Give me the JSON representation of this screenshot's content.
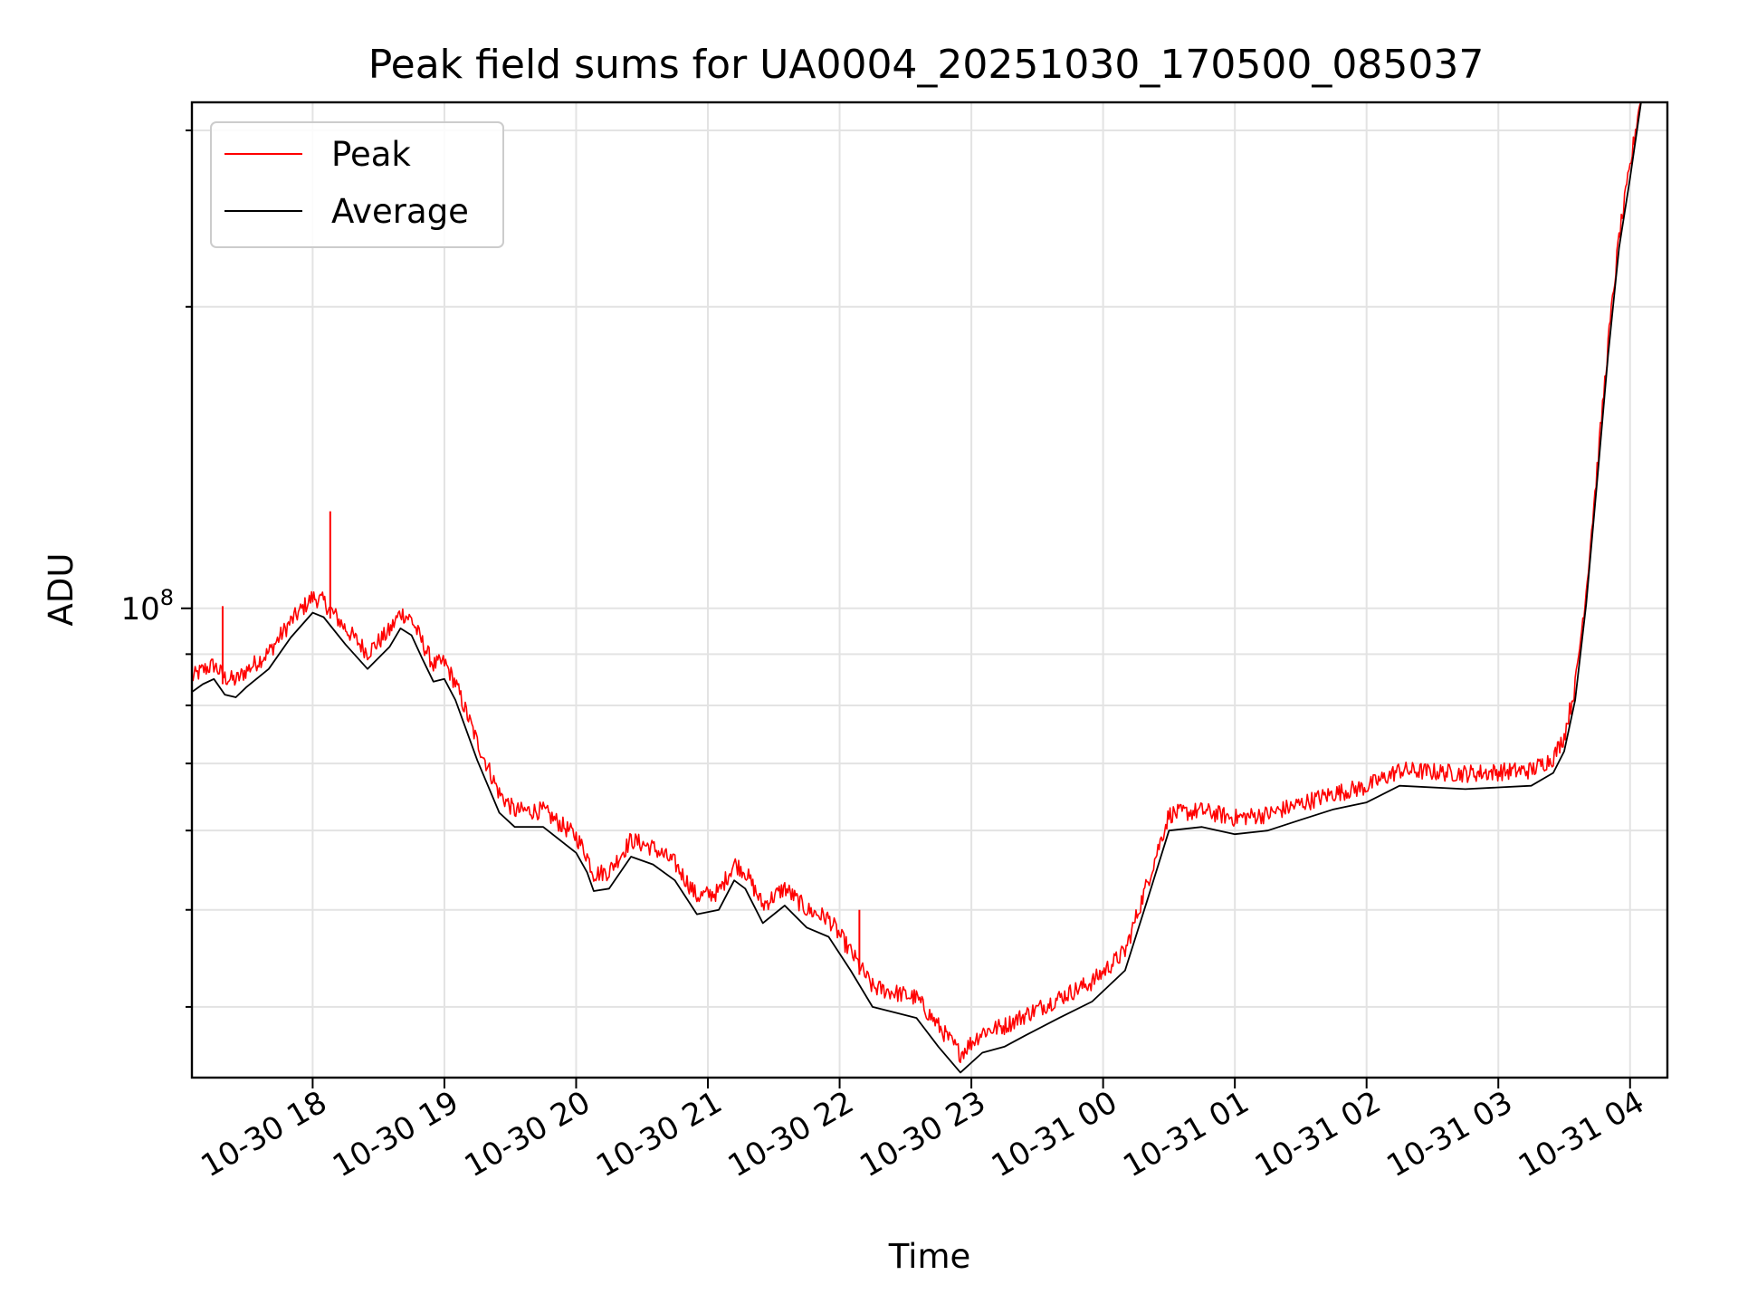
{
  "chart_data": {
    "type": "line",
    "title": "Peak field sums for UA0004_20251030_170500_085037",
    "xlabel": "Time",
    "ylabel": "ADU",
    "yscale": "log",
    "grid": true,
    "legend_position": "top-left",
    "xlim": [
      "2025-10-30 17:05",
      "2025-10-31 04:17"
    ],
    "ylim": [
      34000000,
      320000000
    ],
    "x_ticks": [
      {
        "label": "10-30 18",
        "value": "2025-10-30 18:00"
      },
      {
        "label": "10-30 19",
        "value": "2025-10-30 19:00"
      },
      {
        "label": "10-30 20",
        "value": "2025-10-30 20:00"
      },
      {
        "label": "10-30 21",
        "value": "2025-10-30 21:00"
      },
      {
        "label": "10-30 22",
        "value": "2025-10-30 22:00"
      },
      {
        "label": "10-30 23",
        "value": "2025-10-30 23:00"
      },
      {
        "label": "10-31 00",
        "value": "2025-10-31 00:00"
      },
      {
        "label": "10-31 01",
        "value": "2025-10-31 01:00"
      },
      {
        "label": "10-31 02",
        "value": "2025-10-31 02:00"
      },
      {
        "label": "10-31 03",
        "value": "2025-10-31 03:00"
      },
      {
        "label": "10-31 04",
        "value": "2025-10-31 04:00"
      }
    ],
    "y_major_ticks": [
      {
        "label_base": "10",
        "label_exp": "8",
        "value": 100000000
      }
    ],
    "y_minor_ticks": [
      40000000,
      50000000,
      60000000,
      70000000,
      80000000,
      90000000,
      200000000,
      300000000
    ],
    "series": [
      {
        "name": "Peak",
        "color": "#ff0000",
        "noise": 0.018,
        "spikes": [
          {
            "x": "2025-10-30 17:19",
            "y": 100500000
          },
          {
            "x": "2025-10-30 18:08",
            "y": 125000000
          },
          {
            "x": "2025-10-30 22:09",
            "y": 50000000
          }
        ],
        "points": [
          [
            "2025-10-30 17:05",
            83500000
          ],
          [
            "2025-10-30 17:10",
            85000000
          ],
          [
            "2025-10-30 17:15",
            86000000
          ],
          [
            "2025-10-30 17:20",
            83500000
          ],
          [
            "2025-10-30 17:25",
            83000000
          ],
          [
            "2025-10-30 17:30",
            85000000
          ],
          [
            "2025-10-30 17:40",
            88500000
          ],
          [
            "2025-10-30 17:50",
            95000000
          ],
          [
            "2025-10-30 18:00",
            100500000
          ],
          [
            "2025-10-30 18:05",
            99500000
          ],
          [
            "2025-10-30 18:15",
            93500000
          ],
          [
            "2025-10-30 18:25",
            88500000
          ],
          [
            "2025-10-30 18:35",
            93000000
          ],
          [
            "2025-10-30 18:40",
            97000000
          ],
          [
            "2025-10-30 18:45",
            95500000
          ],
          [
            "2025-10-30 18:50",
            90500000
          ],
          [
            "2025-10-30 18:55",
            86000000
          ],
          [
            "2025-10-30 19:00",
            86500000
          ],
          [
            "2025-10-30 19:05",
            82500000
          ],
          [
            "2025-10-30 19:15",
            72000000
          ],
          [
            "2025-10-30 19:25",
            64000000
          ],
          [
            "2025-10-30 19:32",
            61500000
          ],
          [
            "2025-10-30 19:45",
            61500000
          ],
          [
            "2025-10-30 20:00",
            58000000
          ],
          [
            "2025-10-30 20:05",
            55500000
          ],
          [
            "2025-10-30 20:08",
            53200000
          ],
          [
            "2025-10-30 20:15",
            53500000
          ],
          [
            "2025-10-30 20:25",
            57500000
          ],
          [
            "2025-10-30 20:35",
            56500000
          ],
          [
            "2025-10-30 20:45",
            54500000
          ],
          [
            "2025-10-30 20:55",
            50500000
          ],
          [
            "2025-10-30 21:05",
            51000000
          ],
          [
            "2025-10-30 21:12",
            54500000
          ],
          [
            "2025-10-30 21:17",
            53500000
          ],
          [
            "2025-10-30 21:25",
            49500000
          ],
          [
            "2025-10-30 21:35",
            51500000
          ],
          [
            "2025-10-30 21:45",
            49000000
          ],
          [
            "2025-10-30 21:55",
            48000000
          ],
          [
            "2025-10-30 22:05",
            44500000
          ],
          [
            "2025-10-30 22:15",
            41000000
          ],
          [
            "2025-10-30 22:25",
            40500000
          ],
          [
            "2025-10-30 22:35",
            40000000
          ],
          [
            "2025-10-30 22:45",
            37500000
          ],
          [
            "2025-10-30 22:55",
            35200000
          ],
          [
            "2025-10-30 23:05",
            37000000
          ],
          [
            "2025-10-30 23:15",
            37500000
          ],
          [
            "2025-10-30 23:25",
            38500000
          ],
          [
            "2025-10-30 23:40",
            40000000
          ],
          [
            "2025-10-30 23:55",
            41500000
          ],
          [
            "2025-10-31 00:10",
            44500000
          ],
          [
            "2025-10-31 00:20",
            52000000
          ],
          [
            "2025-10-31 00:30",
            61000000
          ],
          [
            "2025-10-31 00:45",
            61500000
          ],
          [
            "2025-10-31 01:00",
            60500000
          ],
          [
            "2025-10-31 01:15",
            61000000
          ],
          [
            "2025-10-31 01:30",
            62500000
          ],
          [
            "2025-10-31 01:45",
            64000000
          ],
          [
            "2025-10-31 02:00",
            65000000
          ],
          [
            "2025-10-31 02:15",
            67500000
          ],
          [
            "2025-10-31 02:45",
            67000000
          ],
          [
            "2025-10-31 03:15",
            67500000
          ],
          [
            "2025-10-31 03:25",
            69500000
          ],
          [
            "2025-10-31 03:30",
            73000000
          ],
          [
            "2025-10-31 03:35",
            82000000
          ],
          [
            "2025-10-31 03:40",
            102000000
          ],
          [
            "2025-10-31 03:45",
            135000000
          ],
          [
            "2025-10-31 03:50",
            180000000
          ],
          [
            "2025-10-31 03:55",
            230000000
          ],
          [
            "2025-10-31 04:00",
            270000000
          ],
          [
            "2025-10-31 04:05",
            320000000
          ]
        ]
      },
      {
        "name": "Average",
        "color": "#000000",
        "points": [
          [
            "2025-10-30 17:05",
            82500000
          ],
          [
            "2025-10-30 17:10",
            84000000
          ],
          [
            "2025-10-30 17:15",
            85000000
          ],
          [
            "2025-10-30 17:20",
            82000000
          ],
          [
            "2025-10-30 17:25",
            81500000
          ],
          [
            "2025-10-30 17:30",
            83500000
          ],
          [
            "2025-10-30 17:40",
            87000000
          ],
          [
            "2025-10-30 17:50",
            93500000
          ],
          [
            "2025-10-30 18:00",
            99000000
          ],
          [
            "2025-10-30 18:05",
            98000000
          ],
          [
            "2025-10-30 18:15",
            92000000
          ],
          [
            "2025-10-30 18:25",
            87000000
          ],
          [
            "2025-10-30 18:35",
            91500000
          ],
          [
            "2025-10-30 18:40",
            95500000
          ],
          [
            "2025-10-30 18:45",
            94000000
          ],
          [
            "2025-10-30 18:50",
            89000000
          ],
          [
            "2025-10-30 18:55",
            84500000
          ],
          [
            "2025-10-30 19:00",
            85000000
          ],
          [
            "2025-10-30 19:05",
            81000000
          ],
          [
            "2025-10-30 19:15",
            70500000
          ],
          [
            "2025-10-30 19:25",
            62500000
          ],
          [
            "2025-10-30 19:32",
            60500000
          ],
          [
            "2025-10-30 19:45",
            60500000
          ],
          [
            "2025-10-30 20:00",
            57000000
          ],
          [
            "2025-10-30 20:05",
            54500000
          ],
          [
            "2025-10-30 20:08",
            52200000
          ],
          [
            "2025-10-30 20:15",
            52500000
          ],
          [
            "2025-10-30 20:25",
            56500000
          ],
          [
            "2025-10-30 20:35",
            55500000
          ],
          [
            "2025-10-30 20:45",
            53500000
          ],
          [
            "2025-10-30 20:55",
            49500000
          ],
          [
            "2025-10-30 21:05",
            50000000
          ],
          [
            "2025-10-30 21:12",
            53500000
          ],
          [
            "2025-10-30 21:17",
            52500000
          ],
          [
            "2025-10-30 21:25",
            48500000
          ],
          [
            "2025-10-30 21:35",
            50500000
          ],
          [
            "2025-10-30 21:45",
            48000000
          ],
          [
            "2025-10-30 21:55",
            47000000
          ],
          [
            "2025-10-30 22:05",
            43500000
          ],
          [
            "2025-10-30 22:15",
            40000000
          ],
          [
            "2025-10-30 22:25",
            39500000
          ],
          [
            "2025-10-30 22:35",
            39000000
          ],
          [
            "2025-10-30 22:45",
            36500000
          ],
          [
            "2025-10-30 22:55",
            34400000
          ],
          [
            "2025-10-30 23:05",
            36000000
          ],
          [
            "2025-10-30 23:15",
            36500000
          ],
          [
            "2025-10-30 23:25",
            37500000
          ],
          [
            "2025-10-30 23:40",
            39000000
          ],
          [
            "2025-10-30 23:55",
            40500000
          ],
          [
            "2025-10-31 00:10",
            43500000
          ],
          [
            "2025-10-31 00:20",
            51000000
          ],
          [
            "2025-10-31 00:30",
            60000000
          ],
          [
            "2025-10-31 00:45",
            60500000
          ],
          [
            "2025-10-31 01:00",
            59500000
          ],
          [
            "2025-10-31 01:15",
            60000000
          ],
          [
            "2025-10-31 01:30",
            61500000
          ],
          [
            "2025-10-31 01:45",
            63000000
          ],
          [
            "2025-10-31 02:00",
            64000000
          ],
          [
            "2025-10-31 02:15",
            66500000
          ],
          [
            "2025-10-31 02:45",
            66000000
          ],
          [
            "2025-10-31 03:15",
            66500000
          ],
          [
            "2025-10-31 03:25",
            68500000
          ],
          [
            "2025-10-31 03:30",
            72000000
          ],
          [
            "2025-10-31 03:35",
            81000000
          ],
          [
            "2025-10-31 03:40",
            101000000
          ],
          [
            "2025-10-31 03:45",
            134000000
          ],
          [
            "2025-10-31 03:50",
            179000000
          ],
          [
            "2025-10-31 03:55",
            229000000
          ],
          [
            "2025-10-31 04:00",
            269000000
          ],
          [
            "2025-10-31 04:05",
            320000000
          ]
        ]
      }
    ]
  }
}
